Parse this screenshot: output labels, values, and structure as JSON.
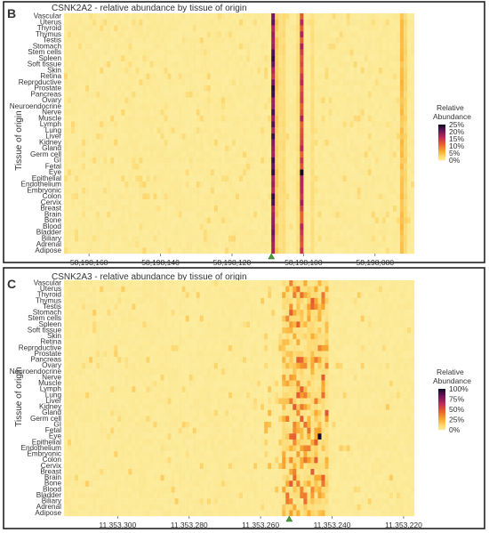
{
  "panels": [
    {
      "letter": "B",
      "title": "CSNK2A2 - relative abundance by tissue of origin",
      "ylabel": "Tissue of origin",
      "legend": {
        "title_line1": "Relative",
        "title_line2": "Abundance",
        "labels": [
          "25%",
          "20%",
          "15%",
          "10%",
          "5%",
          "0%"
        ]
      },
      "x_ticks": [
        "58,198,160",
        "58,198,140",
        "58,198,120",
        "58,198,100",
        "58,198,080"
      ]
    },
    {
      "letter": "C",
      "title": "CSNK2A3 - relative abundance by tissue of origin",
      "ylabel": "Tissue of origin",
      "legend": {
        "title_line1": "Relative",
        "title_line2": "Abundance",
        "labels": [
          "100%",
          "75%",
          "50%",
          "25%",
          "0%"
        ]
      },
      "x_ticks": [
        "11,353,300",
        "11,353,280",
        "11,353,260",
        "11,353,240",
        "11,353,220"
      ]
    }
  ],
  "chart_data": [
    {
      "type": "heatmap",
      "title": "CSNK2A2 - relative abundance by tissue of origin",
      "ylabel": "Tissue of origin",
      "xlabel": "",
      "x_range": [
        58198167,
        58198069
      ],
      "x_reversed": true,
      "value_range": [
        0,
        25
      ],
      "tissues": [
        "Vascular",
        "Uterus",
        "Thyroid",
        "Thymus",
        "Testis",
        "Stomach",
        "Stem cells",
        "Spleen",
        "Soft tissue",
        "Skin",
        "Retina",
        "Reproductive",
        "Prostate",
        "Pancreas",
        "Ovary",
        "Neuroendocrine",
        "Nerve",
        "Muscle",
        "Lymph",
        "Lung",
        "Liver",
        "Kidney",
        "Gland",
        "Germ cell",
        "GI",
        "Fetal",
        "Eye",
        "Epithelial",
        "Endothelium",
        "Embryonic",
        "Colon",
        "Cervix",
        "Breast",
        "Brain",
        "Bone",
        "Blood",
        "Bladder",
        "Biliary",
        "Adrenal",
        "Adipose"
      ],
      "column_abundance": [
        {
          "position": 58198109,
          "value": 20
        },
        {
          "position": 58198108,
          "value": 4
        },
        {
          "position": 58198107,
          "value": 2
        },
        {
          "position": 58198106,
          "value": 2.5
        },
        {
          "position": 58198101,
          "value": 15
        },
        {
          "position": 58198102,
          "value": 2
        },
        {
          "position": 58198098,
          "value": 2
        },
        {
          "position": 58198073,
          "value": 5
        },
        {
          "position": 58198072,
          "value": 3
        }
      ],
      "highlight": {
        "position": 58198101,
        "tissue": "Eye",
        "value": 25
      },
      "marker_position": 58198109,
      "background_value": 0.5
    },
    {
      "type": "heatmap",
      "title": "CSNK2A3 - relative abundance by tissue of origin",
      "ylabel": "Tissue of origin",
      "xlabel": "",
      "x_range": [
        11353315,
        11353217
      ],
      "x_reversed": true,
      "value_range": [
        0,
        100
      ],
      "tissues": [
        "Vascular",
        "Uterus",
        "Thyroid",
        "Thymus",
        "Testis",
        "Stomach",
        "Stem cells",
        "Spleen",
        "Soft tissue",
        "Skin",
        "Retina",
        "Reproductive",
        "Prostate",
        "Pancreas",
        "Ovary",
        "Neuroendocrine",
        "Nerve",
        "Muscle",
        "Lymph",
        "Lung",
        "Liver",
        "Kidney",
        "Gland",
        "Germ cell",
        "GI",
        "Fetal",
        "Eye",
        "Epithelial",
        "Endothelium",
        "Embryonic",
        "Colon",
        "Cervix",
        "Breast",
        "Brain",
        "Bone",
        "Blood",
        "Bladder",
        "Biliary",
        "Adrenal",
        "Adipose"
      ],
      "active_band": [
        11353254,
        11353242
      ],
      "highlight": {
        "position": 11353244,
        "tissue": "Eye",
        "value": 100
      },
      "marker_position": 11353252,
      "background_value": 2
    }
  ]
}
